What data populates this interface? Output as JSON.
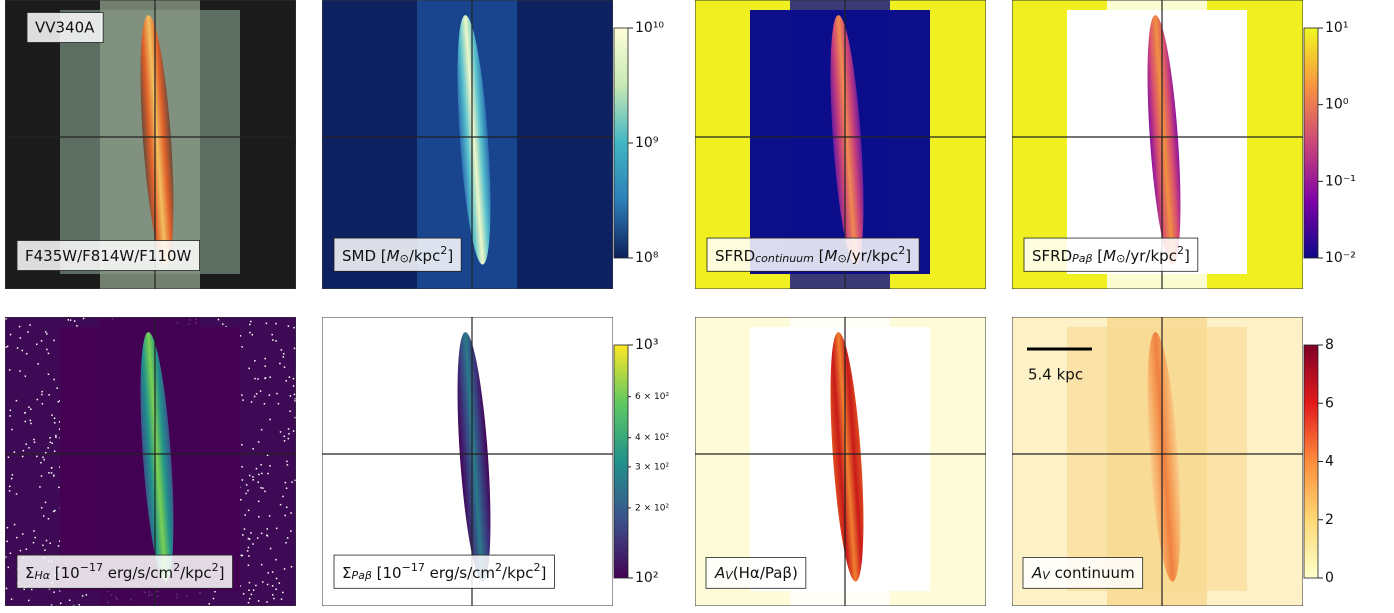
{
  "panels": [
    {
      "title": "VV340A",
      "label": [
        {
          "t": "F435W/F814W/F110W"
        }
      ]
    },
    {
      "label": [
        {
          "t": "SMD ["
        },
        {
          "i": "M"
        },
        {
          "sub": "⊙"
        },
        {
          "t": "/kpc"
        },
        {
          "sup": "2"
        },
        {
          "t": "]"
        }
      ]
    },
    {
      "label": [
        {
          "t": "SFRD"
        },
        {
          "sub": "continuum"
        },
        {
          "t": " ["
        },
        {
          "i": "M"
        },
        {
          "sub": "⊙"
        },
        {
          "t": "/yr/kpc"
        },
        {
          "sup": "2"
        },
        {
          "t": "]"
        }
      ]
    },
    {
      "label": [
        {
          "t": "SFRD"
        },
        {
          "sub": "Paβ"
        },
        {
          "t": " ["
        },
        {
          "i": "M"
        },
        {
          "sub": "⊙"
        },
        {
          "t": "/yr/kpc"
        },
        {
          "sup": "2"
        },
        {
          "t": "]"
        }
      ]
    },
    {
      "label": [
        {
          "t": "Σ"
        },
        {
          "sub": "Hα"
        },
        {
          "t": " [10"
        },
        {
          "sup": "−17"
        },
        {
          "t": " erg/s/cm"
        },
        {
          "sup": "2"
        },
        {
          "t": "/kpc"
        },
        {
          "sup": "2"
        },
        {
          "t": "]"
        }
      ]
    },
    {
      "label": [
        {
          "t": "Σ"
        },
        {
          "sub": "Paβ"
        },
        {
          "t": " [10"
        },
        {
          "sup": "−17"
        },
        {
          "t": " erg/s/cm"
        },
        {
          "sup": "2"
        },
        {
          "t": "/kpc"
        },
        {
          "sup": "2"
        },
        {
          "t": "]"
        }
      ]
    },
    {
      "label": [
        {
          "i": "A"
        },
        {
          "sub": "V"
        },
        {
          "t": "(Hα/Paβ)"
        }
      ]
    },
    {
      "label": [
        {
          "i": "A"
        },
        {
          "sub": "V"
        },
        {
          "t": " continuum"
        }
      ],
      "scale_bar": "5.4 kpc"
    }
  ],
  "colorbars": [
    {
      "scale": "log",
      "lim": [
        100000000,
        10000000000
      ],
      "colors": [
        "#0d1f5c",
        "#2c7fb8",
        "#41b6c4",
        "#c7e9b4",
        "#ffffd9"
      ],
      "ticks": [
        {
          "value": 10000000000,
          "label": "10¹⁰"
        },
        {
          "value": 1000000000,
          "label": "10⁹"
        },
        {
          "value": 100000000,
          "label": "10⁸"
        }
      ]
    },
    {
      "scale": "log",
      "lim": [
        0.01,
        10
      ],
      "colors": [
        "#0d0887",
        "#7e03a8",
        "#cc4778",
        "#f89540",
        "#f0f921"
      ],
      "ticks": [
        {
          "value": 10,
          "label": "10¹"
        },
        {
          "value": 1,
          "label": "10⁰"
        },
        {
          "value": 0.1,
          "label": "10⁻¹"
        },
        {
          "value": 0.01,
          "label": "10⁻²"
        }
      ]
    },
    {
      "scale": "log",
      "lim": [
        100,
        1000
      ],
      "colors": [
        "#440154",
        "#3b528b",
        "#21918c",
        "#5ec962",
        "#fde725"
      ],
      "ticks": [
        {
          "value": 1000,
          "label": "10³"
        },
        {
          "value": 600,
          "label": "6 × 10²"
        },
        {
          "value": 400,
          "label": "4 × 10²"
        },
        {
          "value": 300,
          "label": "3 × 10²"
        },
        {
          "value": 200,
          "label": "2 × 10²"
        },
        {
          "value": 100,
          "label": "10²"
        }
      ]
    },
    {
      "scale": "linear",
      "lim": [
        0,
        8
      ],
      "colors": [
        "#ffffcc",
        "#fed976",
        "#fd8d3c",
        "#e31a1c",
        "#800026"
      ],
      "ticks": [
        8,
        6,
        4,
        2,
        0
      ]
    }
  ]
}
